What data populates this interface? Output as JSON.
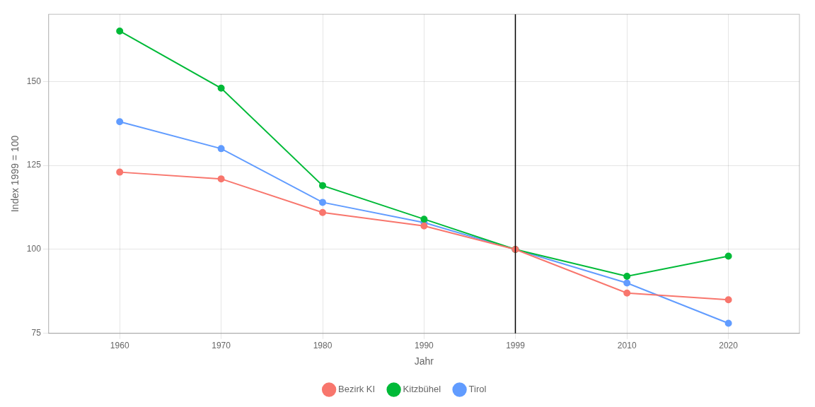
{
  "chart_data": {
    "type": "line",
    "x": [
      1960,
      1970,
      1980,
      1990,
      1999,
      2010,
      2020
    ],
    "series": [
      {
        "name": "Bezirk KI",
        "color": "#F8766D",
        "values": [
          123,
          121,
          111,
          107,
          100,
          87,
          85
        ]
      },
      {
        "name": "Kitzbühel",
        "color": "#00BA38",
        "values": [
          165,
          148,
          119,
          109,
          100,
          92,
          98
        ]
      },
      {
        "name": "Tirol",
        "color": "#619CFF",
        "values": [
          138,
          130,
          114,
          108,
          100,
          90,
          78
        ]
      }
    ],
    "marker": "circle",
    "vline_x": 1999,
    "xlabel": "Jahr",
    "ylabel": "Index 1999 = 100",
    "xlim": [
      1953,
      2027
    ],
    "ylim": [
      75,
      170
    ],
    "xticks": [
      1960,
      1970,
      1980,
      1990,
      1999,
      2010,
      2020
    ],
    "yticks": [
      75,
      100,
      125,
      150
    ],
    "grid": true,
    "legend": "bottom"
  }
}
